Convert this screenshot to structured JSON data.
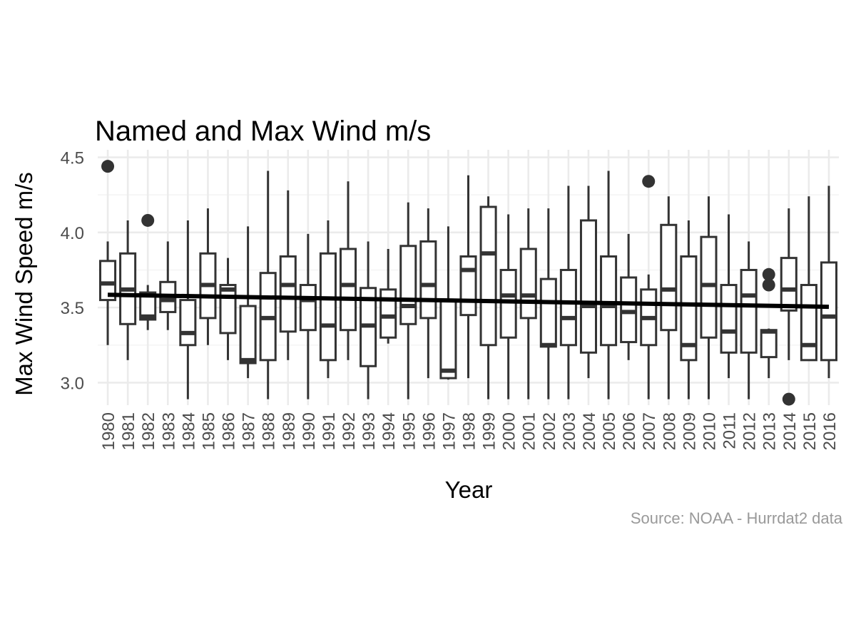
{
  "chart_data": {
    "type": "boxplot",
    "title": "Named and Max Wind m/s",
    "xlabel": "Year",
    "ylabel": "Max Wind Speed m/s",
    "caption": "Source: NOAA - Hurrdat2 data",
    "ylim": [
      2.85,
      4.55
    ],
    "yticks": [
      3.0,
      3.5,
      4.0,
      4.5
    ],
    "ytick_labels": [
      "3.0",
      "3.5",
      "4.0",
      "4.5"
    ],
    "grid": true,
    "legend": "none",
    "categories": [
      "1980",
      "1981",
      "1982",
      "1983",
      "1984",
      "1985",
      "1986",
      "1987",
      "1988",
      "1989",
      "1990",
      "1991",
      "1992",
      "1993",
      "1994",
      "1995",
      "1996",
      "1997",
      "1998",
      "1999",
      "2000",
      "2001",
      "2002",
      "2003",
      "2004",
      "2005",
      "2006",
      "2007",
      "2008",
      "2009",
      "2010",
      "2011",
      "2012",
      "2013",
      "2014",
      "2015",
      "2016"
    ],
    "boxes": [
      {
        "lower": 3.25,
        "q1": 3.55,
        "median": 3.66,
        "q3": 3.81,
        "upper": 3.94,
        "outliers": [
          4.44
        ]
      },
      {
        "lower": 3.15,
        "q1": 3.39,
        "median": 3.62,
        "q3": 3.86,
        "upper": 4.08,
        "outliers": []
      },
      {
        "lower": 3.35,
        "q1": 3.42,
        "median": 3.44,
        "q3": 3.6,
        "upper": 3.65,
        "outliers": [
          4.08
        ]
      },
      {
        "lower": 3.35,
        "q1": 3.47,
        "median": 3.55,
        "q3": 3.67,
        "upper": 3.94,
        "outliers": []
      },
      {
        "lower": 2.89,
        "q1": 3.25,
        "median": 3.33,
        "q3": 3.55,
        "upper": 4.08,
        "outliers": []
      },
      {
        "lower": 3.25,
        "q1": 3.43,
        "median": 3.65,
        "q3": 3.86,
        "upper": 4.16,
        "outliers": []
      },
      {
        "lower": 3.15,
        "q1": 3.33,
        "median": 3.62,
        "q3": 3.65,
        "upper": 3.83,
        "outliers": []
      },
      {
        "lower": 3.03,
        "q1": 3.13,
        "median": 3.15,
        "q3": 3.51,
        "upper": 4.04,
        "outliers": []
      },
      {
        "lower": 2.89,
        "q1": 3.15,
        "median": 3.43,
        "q3": 3.73,
        "upper": 4.41,
        "outliers": []
      },
      {
        "lower": 3.15,
        "q1": 3.34,
        "median": 3.65,
        "q3": 3.84,
        "upper": 4.28,
        "outliers": []
      },
      {
        "lower": 2.89,
        "q1": 3.35,
        "median": 3.55,
        "q3": 3.65,
        "upper": 3.99,
        "outliers": []
      },
      {
        "lower": 3.03,
        "q1": 3.15,
        "median": 3.38,
        "q3": 3.86,
        "upper": 4.08,
        "outliers": []
      },
      {
        "lower": 3.15,
        "q1": 3.35,
        "median": 3.65,
        "q3": 3.89,
        "upper": 4.34,
        "outliers": []
      },
      {
        "lower": 2.89,
        "q1": 3.11,
        "median": 3.38,
        "q3": 3.63,
        "upper": 3.94,
        "outliers": []
      },
      {
        "lower": 3.26,
        "q1": 3.3,
        "median": 3.44,
        "q3": 3.62,
        "upper": 3.89,
        "outliers": []
      },
      {
        "lower": 2.89,
        "q1": 3.39,
        "median": 3.51,
        "q3": 3.91,
        "upper": 4.2,
        "outliers": []
      },
      {
        "lower": 3.03,
        "q1": 3.43,
        "median": 3.65,
        "q3": 3.94,
        "upper": 4.16,
        "outliers": []
      },
      {
        "lower": 3.02,
        "q1": 3.03,
        "median": 3.08,
        "q3": 3.55,
        "upper": 4.04,
        "outliers": []
      },
      {
        "lower": 3.03,
        "q1": 3.45,
        "median": 3.75,
        "q3": 3.84,
        "upper": 4.38,
        "outliers": []
      },
      {
        "lower": 2.89,
        "q1": 3.25,
        "median": 3.86,
        "q3": 4.17,
        "upper": 4.24,
        "outliers": []
      },
      {
        "lower": 2.89,
        "q1": 3.3,
        "median": 3.58,
        "q3": 3.75,
        "upper": 4.12,
        "outliers": []
      },
      {
        "lower": 2.89,
        "q1": 3.43,
        "median": 3.58,
        "q3": 3.89,
        "upper": 4.16,
        "outliers": []
      },
      {
        "lower": 2.89,
        "q1": 3.24,
        "median": 3.25,
        "q3": 3.69,
        "upper": 4.16,
        "outliers": []
      },
      {
        "lower": 2.89,
        "q1": 3.25,
        "median": 3.43,
        "q3": 3.75,
        "upper": 4.31,
        "outliers": []
      },
      {
        "lower": 3.03,
        "q1": 3.2,
        "median": 3.51,
        "q3": 4.08,
        "upper": 4.31,
        "outliers": []
      },
      {
        "lower": 2.89,
        "q1": 3.25,
        "median": 3.51,
        "q3": 3.84,
        "upper": 4.41,
        "outliers": []
      },
      {
        "lower": 3.15,
        "q1": 3.27,
        "median": 3.47,
        "q3": 3.7,
        "upper": 3.99,
        "outliers": []
      },
      {
        "lower": 2.89,
        "q1": 3.25,
        "median": 3.43,
        "q3": 3.62,
        "upper": 3.72,
        "outliers": [
          4.34
        ]
      },
      {
        "lower": 2.89,
        "q1": 3.35,
        "median": 3.62,
        "q3": 4.05,
        "upper": 4.24,
        "outliers": []
      },
      {
        "lower": 2.89,
        "q1": 3.15,
        "median": 3.25,
        "q3": 3.84,
        "upper": 4.08,
        "outliers": []
      },
      {
        "lower": 2.89,
        "q1": 3.3,
        "median": 3.65,
        "q3": 3.97,
        "upper": 4.24,
        "outliers": []
      },
      {
        "lower": 3.03,
        "q1": 3.2,
        "median": 3.34,
        "q3": 3.65,
        "upper": 4.12,
        "outliers": []
      },
      {
        "lower": 2.89,
        "q1": 3.2,
        "median": 3.58,
        "q3": 3.75,
        "upper": 3.94,
        "outliers": []
      },
      {
        "lower": 3.03,
        "q1": 3.17,
        "median": 3.34,
        "q3": 3.35,
        "upper": 3.36,
        "outliers": [
          3.72,
          3.65
        ]
      },
      {
        "lower": 3.15,
        "q1": 3.48,
        "median": 3.62,
        "q3": 3.83,
        "upper": 4.16,
        "outliers": [
          2.89
        ]
      },
      {
        "lower": 3.15,
        "q1": 3.15,
        "median": 3.25,
        "q3": 3.65,
        "upper": 4.24,
        "outliers": []
      },
      {
        "lower": 3.03,
        "q1": 3.15,
        "median": 3.44,
        "q3": 3.8,
        "upper": 4.31,
        "outliers": []
      }
    ],
    "trend_line": {
      "x": [
        "1980",
        "2016"
      ],
      "y": [
        3.585,
        3.505
      ]
    }
  }
}
